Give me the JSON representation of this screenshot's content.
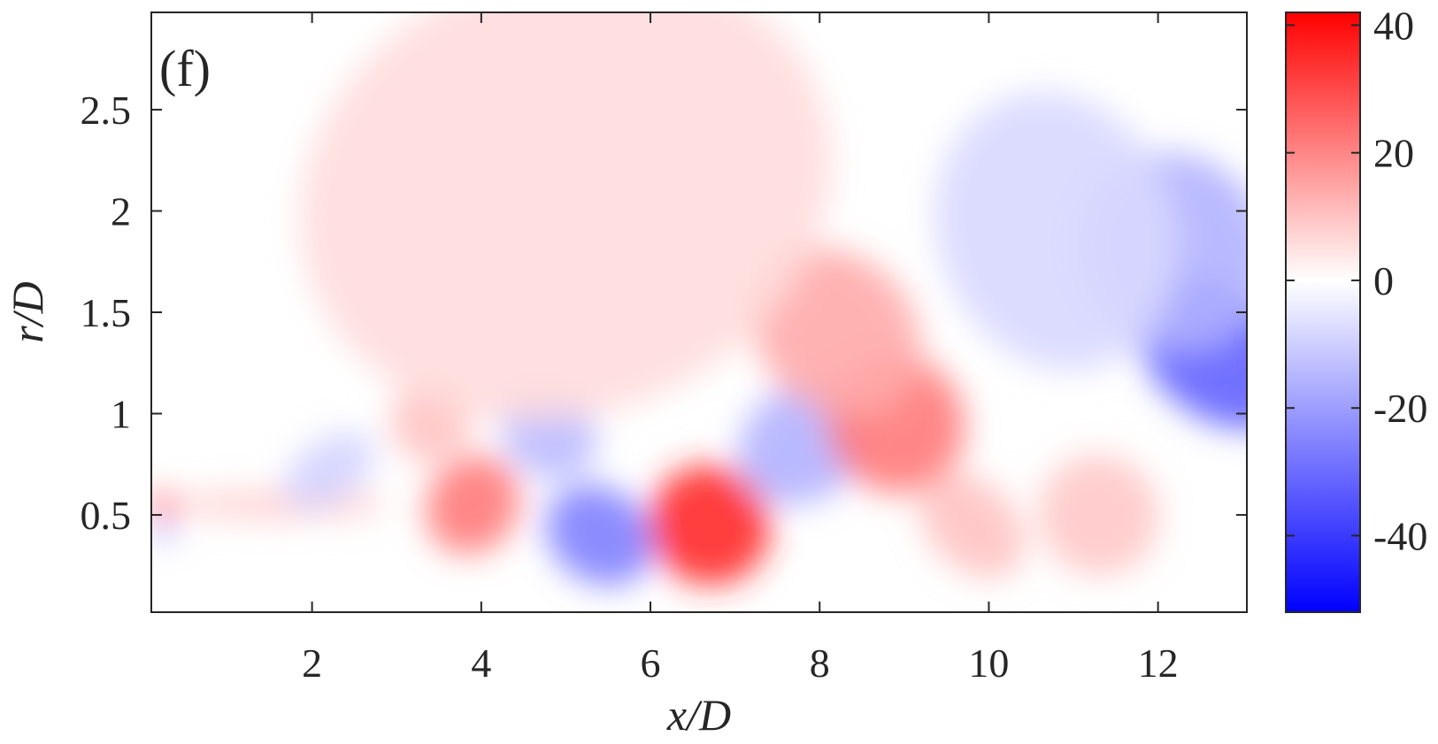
{
  "panel_label": "(f)",
  "chart_data": {
    "type": "heatmap",
    "xlabel": "x/D",
    "ylabel": "r/D",
    "xlim": [
      0.1,
      13.05
    ],
    "ylim": [
      0.02,
      2.98
    ],
    "x_ticks": [
      2,
      4,
      6,
      8,
      10,
      12
    ],
    "x_tick_labels": [
      "2",
      "4",
      "6",
      "8",
      "10",
      "12"
    ],
    "y_ticks": [
      0.5,
      1,
      1.5,
      2,
      2.5
    ],
    "y_tick_labels": [
      "0.5",
      "1",
      "1.5",
      "2",
      "2.5"
    ],
    "colorbar": {
      "clim": [
        -52,
        42
      ],
      "ticks": [
        40,
        20,
        0,
        -20,
        -40
      ],
      "tick_labels": [
        "40",
        "20",
        "0",
        "-20",
        "-40"
      ],
      "colormap": [
        "#0000ff",
        "#ffffff",
        "#ff0000"
      ]
    },
    "grid": false,
    "features": [
      {
        "x": 3.9,
        "y": 0.55,
        "value": 22,
        "sx": 0.6,
        "sy": 0.22,
        "rot": -55
      },
      {
        "x": 3.4,
        "y": 0.95,
        "value": 10,
        "sx": 0.45,
        "sy": 0.2,
        "rot": -50
      },
      {
        "x": 5.4,
        "y": 0.4,
        "value": -26,
        "sx": 0.55,
        "sy": 0.28,
        "rot": -55
      },
      {
        "x": 4.8,
        "y": 0.9,
        "value": -14,
        "sx": 0.5,
        "sy": 0.25,
        "rot": -50
      },
      {
        "x": 6.7,
        "y": 0.45,
        "value": 35,
        "sx": 0.7,
        "sy": 0.3,
        "rot": -55
      },
      {
        "x": 7.8,
        "y": 0.85,
        "value": -16,
        "sx": 0.8,
        "sy": 0.28,
        "rot": -35
      },
      {
        "x": 8.9,
        "y": 0.95,
        "value": 22,
        "sx": 0.8,
        "sy": 0.35,
        "rot": -40
      },
      {
        "x": 8.2,
        "y": 1.4,
        "value": 14,
        "sx": 0.9,
        "sy": 0.45,
        "rot": -45
      },
      {
        "x": 9.8,
        "y": 0.45,
        "value": 10,
        "sx": 0.5,
        "sy": 0.3,
        "rot": -45
      },
      {
        "x": 11.3,
        "y": 0.5,
        "value": 9,
        "sx": 0.7,
        "sy": 0.3,
        "rot": -40
      },
      {
        "x": 12.7,
        "y": 1.3,
        "value": -32,
        "sx": 0.75,
        "sy": 0.45,
        "rot": -50
      },
      {
        "x": 12.2,
        "y": 1.8,
        "value": -16,
        "sx": 1.1,
        "sy": 0.5,
        "rot": -30
      },
      {
        "x": 10.8,
        "y": 1.9,
        "value": -8,
        "sx": 1.4,
        "sy": 0.7,
        "rot": -20
      },
      {
        "x": 1.6,
        "y": 0.55,
        "value": 8,
        "sx": 1.3,
        "sy": 0.07,
        "rot": 0
      },
      {
        "x": 2.2,
        "y": 0.72,
        "value": -9,
        "sx": 0.6,
        "sy": 0.15,
        "rot": -35
      },
      {
        "x": 5.0,
        "y": 2.1,
        "value": 6,
        "sx": 3.2,
        "sy": 1.1,
        "rot": -20
      },
      {
        "x": 0.25,
        "y": 0.55,
        "value": 30,
        "sx": 0.15,
        "sy": 0.06,
        "rot": 0
      },
      {
        "x": 0.25,
        "y": 0.42,
        "value": -20,
        "sx": 0.12,
        "sy": 0.05,
        "rot": 0
      }
    ]
  }
}
